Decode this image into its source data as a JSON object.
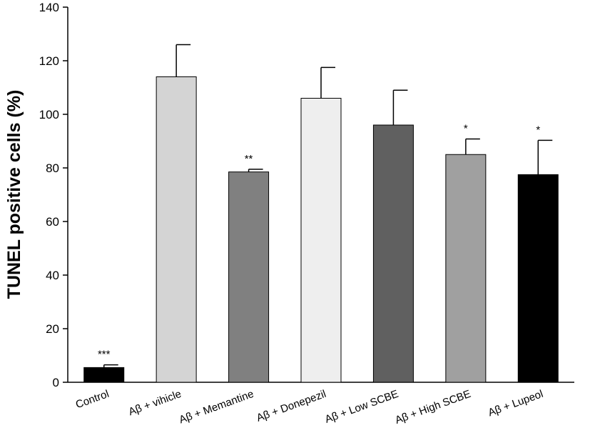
{
  "chart_data": {
    "type": "bar",
    "title": "",
    "xlabel": "",
    "ylabel": "TUNEL positive cells (%)",
    "ylim": [
      0,
      140
    ],
    "yticks": [
      0,
      20,
      40,
      60,
      80,
      100,
      120,
      140
    ],
    "categories": [
      "Control",
      "Aβ  + vihicle",
      "Aβ  + Memantine",
      "Aβ  + Donepezil",
      "Aβ  + Low SCBE",
      "Aβ  + High SCBE",
      "Aβ  + Lupeol"
    ],
    "values": [
      5.5,
      114,
      78.5,
      106,
      96,
      85,
      77.5
    ],
    "errors": [
      1.0,
      12,
      1.0,
      11.5,
      13,
      5.8,
      12.8
    ],
    "annotations": [
      "***",
      "",
      "**",
      "",
      "",
      "*",
      "*"
    ],
    "colors": [
      "#000000",
      "#d4d4d4",
      "#808080",
      "#eeeeee",
      "#606060",
      "#a0a0a0",
      "#000000"
    ],
    "grid": false,
    "legend": "none"
  }
}
